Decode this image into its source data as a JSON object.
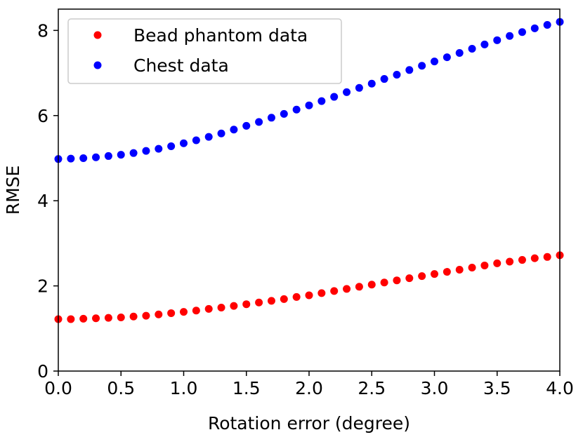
{
  "chart_data": {
    "type": "scatter",
    "title": "",
    "xlabel": "Rotation error (degree)",
    "ylabel": "RMSE",
    "xlim": [
      0.0,
      4.0
    ],
    "ylim": [
      0,
      8.5
    ],
    "x_ticks": [
      "0.0",
      "0.5",
      "1.0",
      "1.5",
      "2.0",
      "2.5",
      "3.0",
      "3.5",
      "4.0"
    ],
    "x_tick_values": [
      0.0,
      0.5,
      1.0,
      1.5,
      2.0,
      2.5,
      3.0,
      3.5,
      4.0
    ],
    "y_ticks": [
      "0",
      "2",
      "4",
      "6",
      "8"
    ],
    "y_tick_values": [
      0,
      2,
      4,
      6,
      8
    ],
    "grid": false,
    "legend_position": "top-left",
    "x": [
      0.0,
      0.1,
      0.2,
      0.3,
      0.4,
      0.5,
      0.6,
      0.7,
      0.8,
      0.9,
      1.0,
      1.1,
      1.2,
      1.3,
      1.4,
      1.5,
      1.6,
      1.7,
      1.8,
      1.9,
      2.0,
      2.1,
      2.2,
      2.3,
      2.4,
      2.5,
      2.6,
      2.7,
      2.8,
      2.9,
      3.0,
      3.1,
      3.2,
      3.3,
      3.4,
      3.5,
      3.6,
      3.7,
      3.8,
      3.9,
      4.0
    ],
    "series": [
      {
        "name": "Bead phantom data",
        "color": "#ff0000",
        "values": [
          1.22,
          1.22,
          1.23,
          1.24,
          1.25,
          1.26,
          1.28,
          1.3,
          1.33,
          1.36,
          1.39,
          1.42,
          1.46,
          1.49,
          1.53,
          1.57,
          1.61,
          1.65,
          1.69,
          1.74,
          1.78,
          1.83,
          1.88,
          1.93,
          1.98,
          2.03,
          2.08,
          2.13,
          2.18,
          2.23,
          2.28,
          2.33,
          2.38,
          2.43,
          2.48,
          2.53,
          2.57,
          2.61,
          2.65,
          2.68,
          2.72
        ]
      },
      {
        "name": "Chest data",
        "color": "#0000ff",
        "values": [
          4.98,
          4.99,
          5.0,
          5.02,
          5.05,
          5.08,
          5.12,
          5.17,
          5.22,
          5.28,
          5.35,
          5.42,
          5.5,
          5.58,
          5.67,
          5.76,
          5.85,
          5.95,
          6.04,
          6.14,
          6.24,
          6.34,
          6.44,
          6.55,
          6.65,
          6.75,
          6.86,
          6.96,
          7.07,
          7.17,
          7.27,
          7.37,
          7.47,
          7.57,
          7.67,
          7.77,
          7.87,
          7.96,
          8.05,
          8.13,
          8.2
        ]
      }
    ]
  }
}
